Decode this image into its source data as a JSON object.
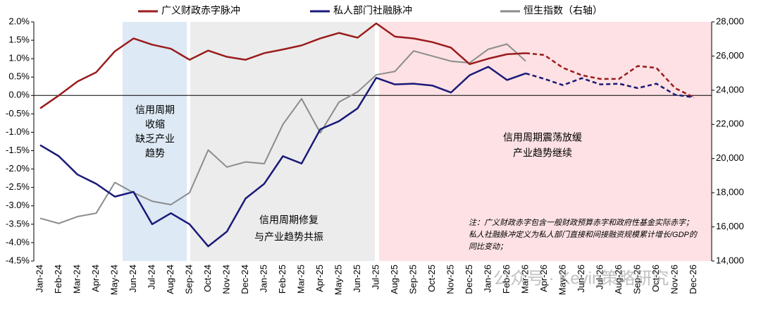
{
  "chart_data": {
    "type": "line",
    "categories": [
      "Jan-24",
      "Feb-24",
      "Mar-24",
      "Apr-24",
      "May-24",
      "Jun-24",
      "Jul-24",
      "Aug-24",
      "Sep-24",
      "Oct-24",
      "Nov-24",
      "Dec-24",
      "Jan-25",
      "Feb-25",
      "Mar-25",
      "Apr-25",
      "May-25",
      "Jun-25",
      "Jul-25",
      "Aug-25",
      "Sep-25",
      "Oct-25",
      "Nov-25",
      "Dec-25",
      "Jan-26",
      "Feb-26",
      "Mar-26",
      "Apr-26",
      "May-26",
      "Jun-26",
      "Jul-26",
      "Aug-26",
      "Sep-26",
      "Oct-26",
      "Nov-26",
      "Dec-26"
    ],
    "forecast_from": "Mar-26",
    "series": [
      {
        "name": "广义财政赤字脉冲",
        "color": "#9b1c1c",
        "values": [
          -0.35,
          0.0,
          0.38,
          0.63,
          1.2,
          1.55,
          1.38,
          1.27,
          0.97,
          1.22,
          1.05,
          0.97,
          1.15,
          1.25,
          1.36,
          1.55,
          1.7,
          1.57,
          1.96,
          1.6,
          1.55,
          1.45,
          1.3,
          0.85,
          1.0,
          1.12,
          1.15,
          1.1,
          0.75,
          0.55,
          0.45,
          0.45,
          0.8,
          0.75,
          0.2,
          -0.05
        ]
      },
      {
        "name": "私人部门社融脉冲",
        "color": "#1a1a78",
        "values": [
          -1.35,
          -1.65,
          -2.15,
          -2.4,
          -2.75,
          -2.62,
          -3.5,
          -3.2,
          -3.5,
          -4.1,
          -3.7,
          -2.8,
          -2.4,
          -1.65,
          -1.85,
          -0.92,
          -0.7,
          -0.35,
          0.48,
          0.3,
          0.32,
          0.27,
          0.08,
          0.55,
          0.78,
          0.42,
          0.6,
          0.45,
          0.28,
          0.47,
          0.3,
          0.32,
          0.2,
          0.32,
          0.02,
          -0.05
        ]
      },
      {
        "name": "恒生指数（右轴）",
        "color": "#8c8c8c",
        "axis": "y2",
        "values": [
          16500,
          16200,
          16600,
          16800,
          18600,
          18000,
          17500,
          17300,
          18000,
          20500,
          19500,
          19800,
          19700,
          22000,
          23500,
          21500,
          23300,
          23900,
          24900,
          25100,
          26300,
          26000,
          25700,
          25600,
          26400,
          26700,
          25700,
          null,
          null,
          null,
          null,
          null,
          null,
          null,
          null,
          null
        ]
      }
    ],
    "ylim": [
      -4.5,
      2.0
    ],
    "yticks": [
      {
        "value": 2.0,
        "label": "2.0%"
      },
      {
        "value": 1.5,
        "label": "1.5%"
      },
      {
        "value": 1.0,
        "label": "1.0%"
      },
      {
        "value": 0.5,
        "label": "0.5%"
      },
      {
        "value": 0.0,
        "label": "0.0%"
      },
      {
        "value": -0.5,
        "label": "-0.5%"
      },
      {
        "value": -1.0,
        "label": "-1.0%"
      },
      {
        "value": -1.5,
        "label": "-1.5%"
      },
      {
        "value": -2.0,
        "label": "-2.0%"
      },
      {
        "value": -2.5,
        "label": "-2.5%"
      },
      {
        "value": -3.0,
        "label": "-3.0%"
      },
      {
        "value": -3.5,
        "label": "-3.5%"
      },
      {
        "value": -4.0,
        "label": "-4.0%"
      },
      {
        "value": -4.5,
        "label": "-4.5%"
      }
    ],
    "y2lim": [
      14000,
      28000
    ],
    "y2ticks": [
      {
        "value": 28000,
        "label": "28,000"
      },
      {
        "value": 26000,
        "label": "26,000"
      },
      {
        "value": 24000,
        "label": "24,000"
      },
      {
        "value": 22000,
        "label": "22,000"
      },
      {
        "value": 20000,
        "label": "20,000"
      },
      {
        "value": 18000,
        "label": "18,000"
      },
      {
        "value": 16000,
        "label": "16,000"
      },
      {
        "value": 14000,
        "label": "14,000"
      }
    ],
    "annotations": [
      {
        "lines": [
          "信用周期",
          "收缩",
          "缺乏产业",
          "趋势"
        ]
      },
      {
        "lines": [
          "信用周期修复",
          "与产业趋势共振"
        ]
      },
      {
        "lines": [
          "信用周期震荡放缓",
          "产业趋势继续"
        ]
      }
    ],
    "note": [
      "注：广义财政赤字包含一般财政预算赤字和政府性基金实际赤字；",
      "私人社融脉冲定义为私人部门直接和间接融资规模累计增长/GDP的",
      "同比变动；"
    ],
    "watermark": "公众号 · Kevin策略研究"
  }
}
